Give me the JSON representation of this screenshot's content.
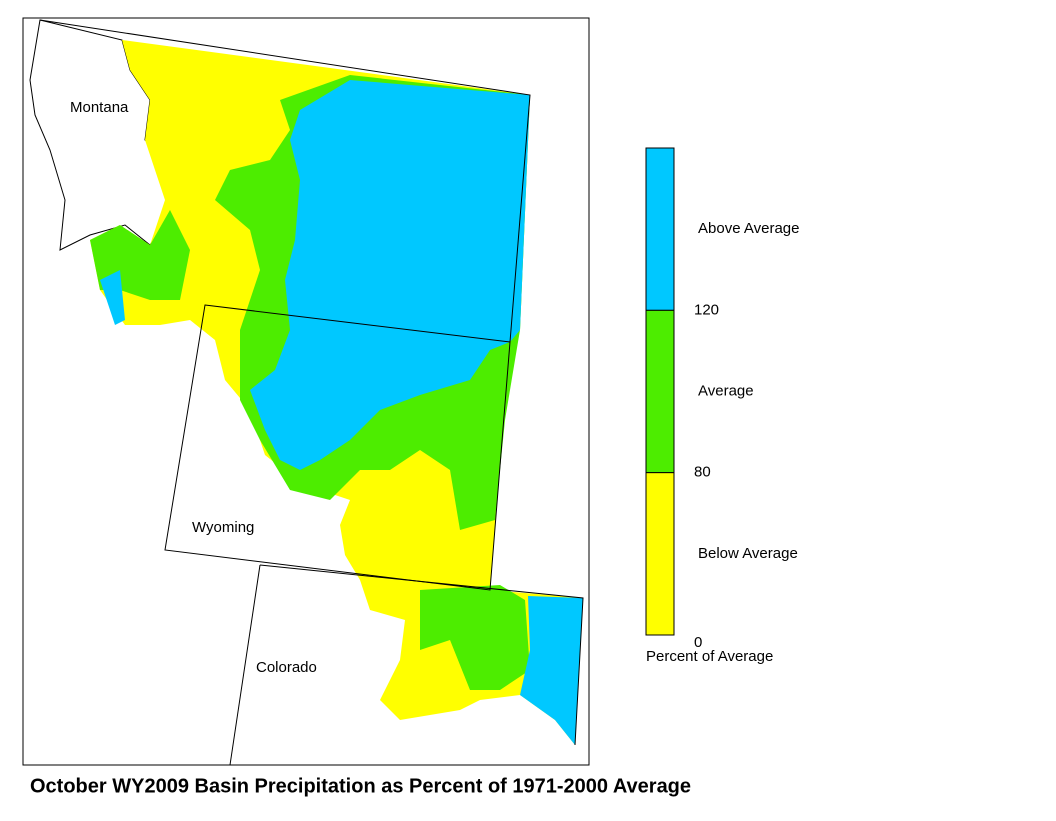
{
  "map": {
    "title": "October WY2009 Basin Precipitation as Percent of 1971-2000 Average",
    "states": [
      "Montana",
      "Wyoming",
      "Colorado"
    ],
    "legend": {
      "title": "Percent of Average",
      "classes": [
        {
          "label": "Above Average",
          "color": "#00c8ff"
        },
        {
          "label": "Average",
          "color": "#4ded00"
        },
        {
          "label": "Below Average",
          "color": "#ffff00"
        }
      ],
      "ticks": [
        "120",
        "80",
        "0"
      ]
    }
  }
}
